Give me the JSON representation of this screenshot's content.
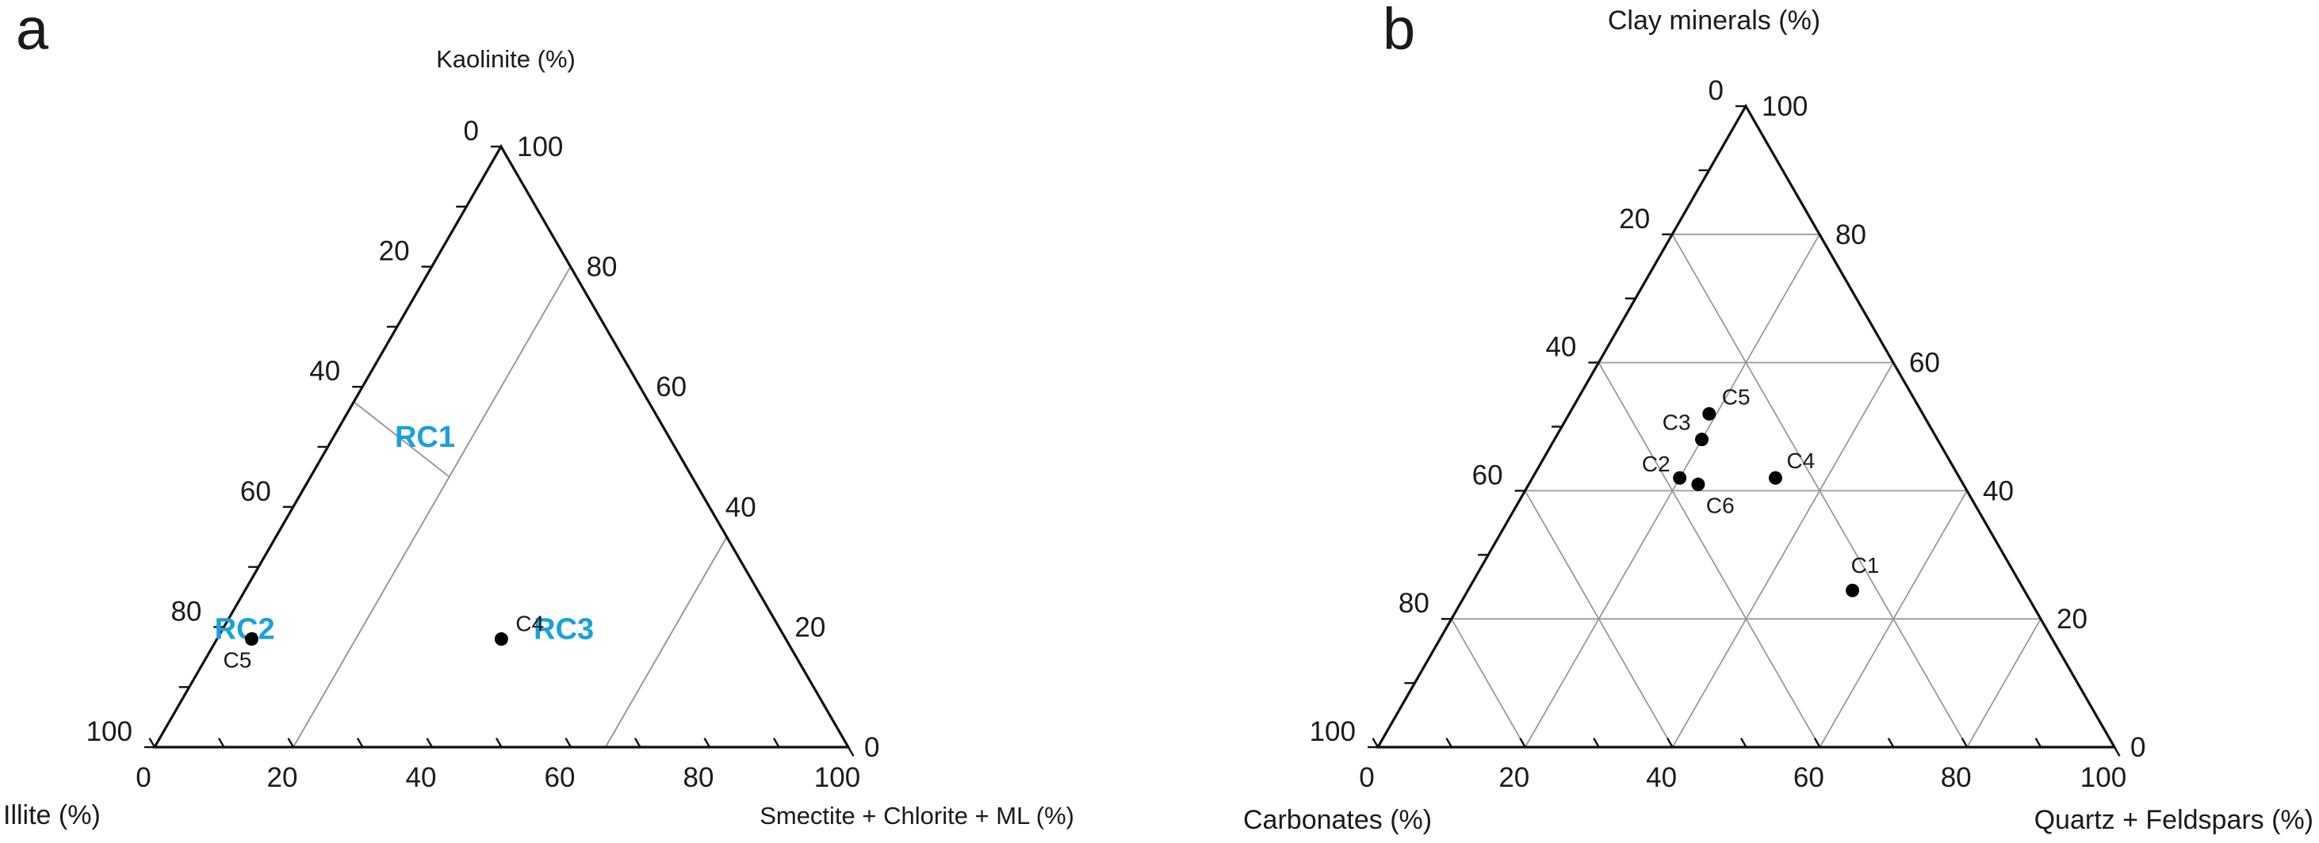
{
  "colors": {
    "region_label": "#1a9fe0",
    "axis": "#111111",
    "grid": "#9a9a9a",
    "point": "#000000"
  },
  "chart_data": [
    {
      "type": "scatter",
      "panel": "a",
      "axes": {
        "top": "Kaolinite (%)",
        "left": "Illite (%)",
        "right": "Smectite + Chlorite + ML (%)"
      },
      "ticks": {
        "left": [
          "0",
          "20",
          "40",
          "60",
          "80",
          "100"
        ],
        "right": [
          "100",
          "80",
          "60",
          "40",
          "20",
          "0"
        ],
        "bottom": [
          "0",
          "20",
          "40",
          "60",
          "80",
          "100"
        ]
      },
      "regions": [
        {
          "name": "RC1",
          "illite": 36,
          "smectite": 14,
          "kaolinite": 50
        },
        {
          "name": "RC2",
          "illite": 78,
          "smectite": 4,
          "kaolinite": 18
        },
        {
          "name": "RC3",
          "illite": 32,
          "smectite": 50,
          "kaolinite": 18
        }
      ],
      "boundaries": [
        [
          {
            "illite": 80,
            "smectite": 20,
            "kaolinite": 0
          },
          {
            "illite": 0,
            "smectite": 20,
            "kaolinite": 80
          }
        ],
        [
          {
            "illite": 35,
            "smectite": 65,
            "kaolinite": 0
          },
          {
            "illite": 0,
            "smectite": 65,
            "kaolinite": 35
          }
        ],
        [
          {
            "illite": 42.5,
            "smectite": 0,
            "kaolinite": 57.5
          },
          {
            "illite": 35,
            "smectite": 20,
            "kaolinite": 45
          }
        ]
      ],
      "points": [
        {
          "label": "C5",
          "illite": 77,
          "smectite": 5,
          "kaolinite": 18
        },
        {
          "label": "C4",
          "illite": 41,
          "smectite": 41,
          "kaolinite": 18
        }
      ]
    },
    {
      "type": "scatter",
      "panel": "b",
      "axes": {
        "top": "Clay minerals (%)",
        "left": "Carbonates (%)",
        "right": "Quartz + Feldspars (%)"
      },
      "ticks": {
        "left": [
          "0",
          "20",
          "40",
          "60",
          "80",
          "100"
        ],
        "right": [
          "100",
          "80",
          "60",
          "40",
          "20",
          "0"
        ],
        "bottom": [
          "0",
          "20",
          "40",
          "60",
          "80",
          "100"
        ]
      },
      "grid_step": 20,
      "points": [
        {
          "label": "C5",
          "carbonates": 29,
          "quartz_feldspars": 19,
          "clay": 52
        },
        {
          "label": "C3",
          "carbonates": 32,
          "quartz_feldspars": 20,
          "clay": 48
        },
        {
          "label": "C2",
          "carbonates": 38,
          "quartz_feldspars": 20,
          "clay": 42
        },
        {
          "label": "C4",
          "carbonates": 25,
          "quartz_feldspars": 33,
          "clay": 42
        },
        {
          "label": "C6",
          "carbonates": 36,
          "quartz_feldspars": 23,
          "clay": 41
        },
        {
          "label": "C1",
          "carbonates": 21,
          "quartz_feldspars": 47,
          "clay": 22
        }
      ]
    }
  ]
}
